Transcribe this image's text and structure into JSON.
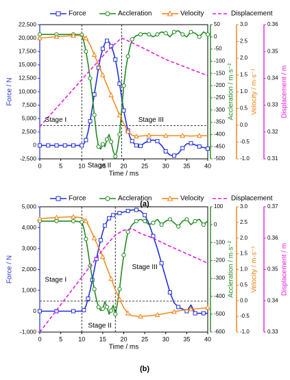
{
  "colors": {
    "force": "#1f2fd6",
    "acceleration": "#1f8a1f",
    "velocity": "#f07f0c",
    "displacement": "#e619e6",
    "axis": "#000000",
    "guide": "#000000"
  },
  "chart_data": [
    {
      "panel_label": "(a)",
      "type": "line",
      "xlabel": "Time / ms",
      "xlim": [
        0,
        40
      ],
      "xticks": [
        0,
        5,
        10,
        15,
        20,
        25,
        30,
        35,
        40
      ],
      "legend": {
        "placement": "top",
        "labels": [
          "Force",
          "Accleration",
          "Velocity",
          "Displacement"
        ]
      },
      "axes": {
        "force": {
          "label": "Force / N",
          "lim": [
            -2500,
            22500
          ],
          "ticks": [
            "-2,500",
            "0",
            "2,500",
            "5,000",
            "7,500",
            "10,000",
            "12,500",
            "15,000",
            "17,500",
            "20,000",
            "22,500"
          ]
        },
        "acceleration": {
          "label": "Accleration / m·s⁻²",
          "lim": [
            -500,
            50
          ],
          "ticks": [
            "50",
            "0",
            "-50",
            "-100",
            "-150",
            "-200",
            "-250",
            "-300",
            "-350",
            "-400",
            "-450",
            "-500"
          ]
        },
        "velocity": {
          "label": "Velocity / m·s⁻¹",
          "lim": [
            -1.0,
            3.0
          ],
          "ticks": [
            "3.0",
            "2.5",
            "2.0",
            "1.5",
            "1.0",
            "0.5",
            "0.0",
            "-0.5",
            "-1.0"
          ]
        },
        "displacement": {
          "label": "Displacement / m",
          "lim": [
            0.31,
            0.36
          ],
          "ticks": [
            "0.36",
            "0.35",
            "0.34",
            "0.33",
            "0.32",
            "0.31"
          ]
        }
      },
      "stage_labels": [
        "Stage I",
        "Stage II",
        "Stage III"
      ],
      "guides": {
        "vertical_ms": [
          10,
          19.5
        ],
        "horizontal_force": 3700
      },
      "series": [
        {
          "name": "Force",
          "axis": "force",
          "x": [
            0,
            1,
            2,
            3,
            4,
            5,
            6,
            7,
            8,
            9,
            10,
            10.5,
            11,
            11.5,
            12,
            12.5,
            13,
            13.5,
            14,
            14.5,
            15,
            15.5,
            16,
            16.5,
            17,
            17.5,
            18,
            18.5,
            19,
            19.5,
            20,
            20.5,
            21,
            21.5,
            22,
            22.5,
            23,
            23.5,
            24,
            25,
            26,
            27,
            28,
            29,
            30,
            31,
            32,
            33,
            34,
            35,
            36,
            37,
            38,
            39,
            40
          ],
          "y": [
            0,
            0,
            0,
            0,
            0,
            0,
            0,
            0,
            0,
            0,
            0,
            300,
            1000,
            2500,
            4500,
            7000,
            9500,
            12000,
            14500,
            16500,
            18000,
            19000,
            19500,
            19300,
            18500,
            17500,
            16000,
            14000,
            11500,
            9000,
            6500,
            4500,
            2800,
            1500,
            800,
            300,
            0,
            -100,
            -100,
            500,
            900,
            1000,
            800,
            0,
            -1100,
            -1800,
            -1900,
            -1500,
            -500,
            300,
            400,
            100,
            -200,
            -400,
            -600
          ]
        },
        {
          "name": "Accleration",
          "axis": "acceleration",
          "x": [
            0,
            2,
            4,
            6,
            8,
            9,
            10,
            10.5,
            11,
            11.5,
            12,
            12.5,
            13,
            13.5,
            14,
            14.5,
            15,
            15.5,
            16,
            16.5,
            17,
            17.5,
            18,
            18.5,
            19,
            19.5,
            20,
            20.5,
            21,
            21.5,
            22,
            23,
            24,
            25,
            26,
            27,
            28,
            29,
            30,
            31,
            32,
            33,
            34,
            35,
            36,
            37,
            38,
            39,
            40
          ],
          "y": [
            10,
            10,
            10,
            10,
            10,
            10,
            8,
            -20,
            -60,
            -110,
            -170,
            -240,
            -320,
            -400,
            -450,
            -460,
            -440,
            -450,
            -420,
            -400,
            -430,
            -470,
            -490,
            -460,
            -400,
            -300,
            -200,
            -130,
            -80,
            -40,
            -10,
            5,
            10,
            15,
            10,
            0,
            10,
            20,
            15,
            0,
            20,
            25,
            10,
            0,
            20,
            15,
            0,
            20,
            10
          ]
        },
        {
          "name": "Velocity",
          "axis": "velocity",
          "x": [
            0,
            2,
            4,
            6,
            8,
            10,
            11,
            12,
            13,
            14,
            15,
            16,
            17,
            18,
            19,
            20,
            21,
            22,
            23,
            24,
            26,
            28,
            30,
            32,
            34,
            36,
            38,
            40
          ],
          "y": [
            2.6,
            2.62,
            2.64,
            2.66,
            2.67,
            2.68,
            2.6,
            2.4,
            2.1,
            1.8,
            1.5,
            1.2,
            0.9,
            0.6,
            0.3,
            0.05,
            -0.18,
            -0.3,
            -0.33,
            -0.32,
            -0.3,
            -0.3,
            -0.31,
            -0.31,
            -0.31,
            -0.32,
            -0.31,
            -0.31
          ]
        },
        {
          "name": "Displacement",
          "axis": "displacement",
          "x": [
            0,
            4,
            8,
            12,
            16,
            18,
            19.5,
            21,
            25,
            30,
            35,
            40
          ],
          "y": [
            0.322,
            0.329,
            0.336,
            0.343,
            0.35,
            0.353,
            0.355,
            0.354,
            0.351,
            0.347,
            0.344,
            0.341
          ]
        }
      ]
    },
    {
      "panel_label": "(b)",
      "type": "line",
      "xlabel": "Time / ms",
      "xlim": [
        0,
        40
      ],
      "xticks": [
        0,
        5,
        10,
        15,
        20,
        25,
        30,
        35,
        40
      ],
      "legend": {
        "placement": "top",
        "labels": [
          "Force",
          "Accleration",
          "Velocity",
          "Displacement"
        ]
      },
      "axes": {
        "force": {
          "label": "Force / N",
          "lim": [
            -1000,
            5000
          ],
          "ticks": [
            "-1,000",
            "0",
            "1,000",
            "2,000",
            "3,000",
            "4,000",
            "5,000"
          ]
        },
        "acceleration": {
          "label": "Accleration / m·s⁻²",
          "lim": [
            -600,
            100
          ],
          "ticks": [
            "100",
            "0",
            "-100",
            "-200",
            "-300",
            "-400",
            "-500",
            "-600"
          ]
        },
        "velocity": {
          "label": "Velocity / m·s⁻¹",
          "lim": [
            -1.0,
            3.0
          ],
          "ticks": [
            "3.0",
            "2.5",
            "2.0",
            "1.5",
            "1.0",
            "0.5",
            "0.0",
            "-0.5",
            "-1.0"
          ]
        },
        "displacement": {
          "label": "Displacement / m",
          "lim": [
            0.33,
            0.37
          ],
          "ticks": [
            "0.37",
            "0.36",
            "0.35",
            "0.34",
            "0.33"
          ]
        }
      },
      "stage_labels": [
        "Stage I",
        "Stage II",
        "Stage III"
      ],
      "guides": {
        "vertical_ms": [
          10,
          18
        ],
        "horizontal_force": 480
      },
      "series": [
        {
          "name": "Force",
          "axis": "force",
          "x": [
            0,
            2,
            4,
            6,
            8,
            10,
            10.5,
            11,
            11.5,
            12,
            12.5,
            13,
            13.5,
            14,
            14.5,
            15,
            15.5,
            16,
            16.5,
            17,
            17.5,
            18,
            19,
            20,
            21,
            22,
            23,
            24,
            25,
            26,
            27,
            28,
            29,
            30,
            31,
            32,
            33,
            34,
            35,
            36,
            37,
            38,
            39,
            40
          ],
          "y": [
            0,
            0,
            0,
            0,
            0,
            0,
            50,
            250,
            600,
            1000,
            1500,
            2000,
            2500,
            3000,
            3400,
            3800,
            4100,
            4300,
            4450,
            4550,
            4600,
            4650,
            4700,
            4750,
            4800,
            4850,
            4850,
            4800,
            4600,
            4200,
            3600,
            3000,
            2300,
            1600,
            900,
            400,
            200,
            100,
            0,
            300,
            -100,
            -100,
            -100,
            -100
          ]
        },
        {
          "name": "Accleration",
          "axis": "acceleration",
          "x": [
            0,
            2,
            4,
            6,
            8,
            9,
            10,
            10.5,
            11,
            11.5,
            12,
            12.5,
            13,
            13.5,
            14,
            14.5,
            15,
            15.5,
            16,
            16.5,
            17,
            17.5,
            18,
            18.5,
            19,
            19.5,
            20,
            20.5,
            21,
            22,
            23,
            24,
            25,
            26,
            27,
            28,
            29,
            30,
            31,
            32,
            33,
            34,
            35,
            36,
            37,
            38,
            39,
            40
          ],
          "y": [
            20,
            20,
            20,
            20,
            20,
            18,
            15,
            -20,
            -80,
            -150,
            -230,
            -300,
            -360,
            -420,
            -460,
            -480,
            -470,
            -430,
            -460,
            -500,
            -480,
            -450,
            -500,
            -440,
            -360,
            -260,
            -170,
            -100,
            -40,
            0,
            20,
            30,
            20,
            0,
            10,
            30,
            0,
            20,
            30,
            10,
            -10,
            20,
            30,
            0,
            20,
            30,
            0,
            20
          ]
        },
        {
          "name": "Velocity",
          "axis": "velocity",
          "x": [
            0,
            2,
            4,
            6,
            8,
            10,
            11,
            12,
            13,
            14,
            15,
            16,
            17,
            18,
            19,
            20,
            21,
            22,
            24,
            26,
            28,
            30,
            32,
            34,
            36,
            38,
            40
          ],
          "y": [
            2.62,
            2.64,
            2.66,
            2.67,
            2.68,
            2.65,
            2.55,
            2.3,
            2.0,
            1.7,
            1.4,
            1.05,
            0.7,
            0.35,
            0.05,
            -0.22,
            -0.4,
            -0.48,
            -0.5,
            -0.48,
            -0.45,
            -0.4,
            -0.35,
            -0.3,
            -0.27,
            -0.25,
            -0.22
          ]
        },
        {
          "name": "Displacement",
          "axis": "displacement",
          "x": [
            0,
            4,
            8,
            12,
            16,
            18,
            20,
            22,
            24,
            27,
            30,
            35,
            40
          ],
          "y": [
            0.33,
            0.337,
            0.344,
            0.351,
            0.358,
            0.361,
            0.3625,
            0.363,
            0.3615,
            0.36,
            0.358,
            0.355,
            0.352
          ]
        }
      ]
    }
  ]
}
